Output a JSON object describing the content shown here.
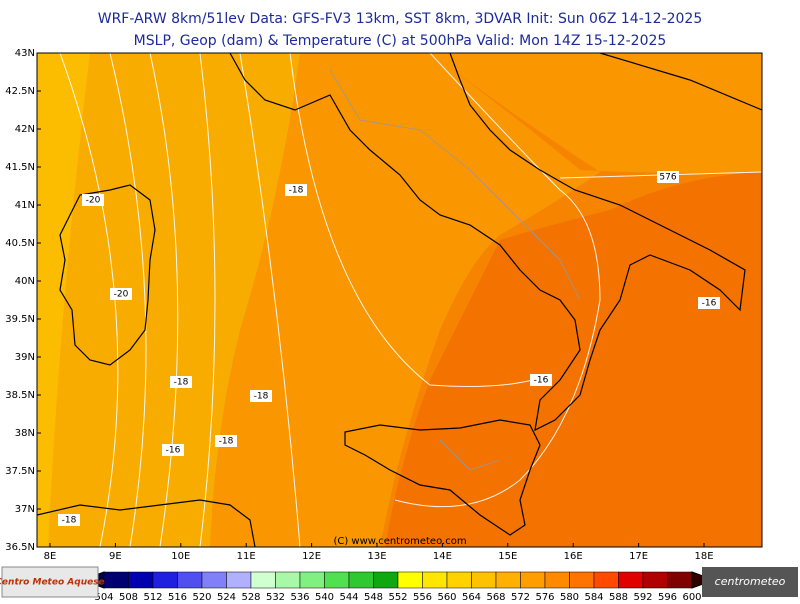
{
  "header": {
    "line1": "WRF-ARW 8km/51lev   Data: GFS-FV3 13km, SST 8km, 3DVAR   Init: Sun 06Z 14-12-2025",
    "line2": "MSLP, Geop (dam) & Temperature (C) at 500hPa  Valid: Mon 14Z 15-12-2025"
  },
  "axes": {
    "lat_labels": [
      "43N",
      "42.5N",
      "42N",
      "41.5N",
      "41N",
      "40.5N",
      "40N",
      "39.5N",
      "39N",
      "38.5N",
      "38N",
      "37.5N",
      "37N",
      "36.5N"
    ],
    "lon_labels": [
      "8E",
      "9E",
      "10E",
      "11E",
      "12E",
      "13E",
      "14E",
      "15E",
      "16E",
      "17E",
      "18E"
    ]
  },
  "contour_labels": [
    "-20",
    "-20",
    "-18",
    "-18",
    "-18",
    "-18",
    "-16",
    "-18",
    "-16",
    "-16",
    "576"
  ],
  "copyright": "(C) www.centrometeo.com",
  "colorbar": {
    "labels": [
      504,
      508,
      512,
      516,
      520,
      524,
      528,
      532,
      536,
      540,
      544,
      548,
      552,
      556,
      560,
      564,
      568,
      572,
      576,
      580,
      584,
      588,
      592,
      596,
      600
    ],
    "colors": [
      "#000070",
      "#0000b0",
      "#2020e0",
      "#5050f0",
      "#8080f8",
      "#b0b0ff",
      "#d0ffd0",
      "#a8f8a8",
      "#80f080",
      "#50e050",
      "#30c830",
      "#10a810",
      "#ffff00",
      "#ffe600",
      "#ffd200",
      "#ffc200",
      "#ffb000",
      "#ff9e00",
      "#ff8a00",
      "#ff7400",
      "#ff4a00",
      "#e00000",
      "#b00000",
      "#800000"
    ]
  },
  "logos": {
    "left": "Centro Meteo Aquese",
    "right": "centrometeo"
  }
}
